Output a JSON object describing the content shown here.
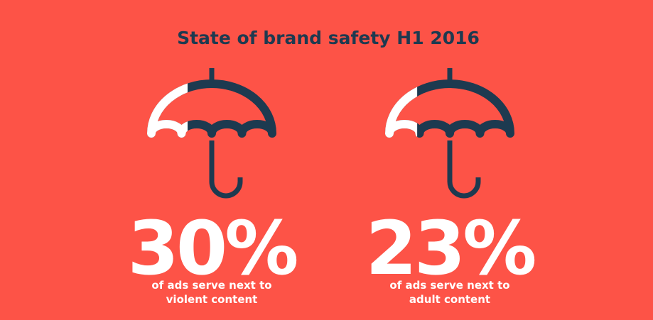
{
  "chart_data": {
    "type": "pictogram",
    "title": "State of brand safety H1 2016",
    "values": [
      30,
      23
    ],
    "value_labels": [
      "30%",
      "23%"
    ],
    "categories": [
      "of ads serve next to violent content",
      "of ads serve next to adult content"
    ],
    "color": "#ffffff",
    "base_color": "#1d3a50",
    "background": "#fd5347",
    "ylim": [
      0,
      100
    ]
  }
}
